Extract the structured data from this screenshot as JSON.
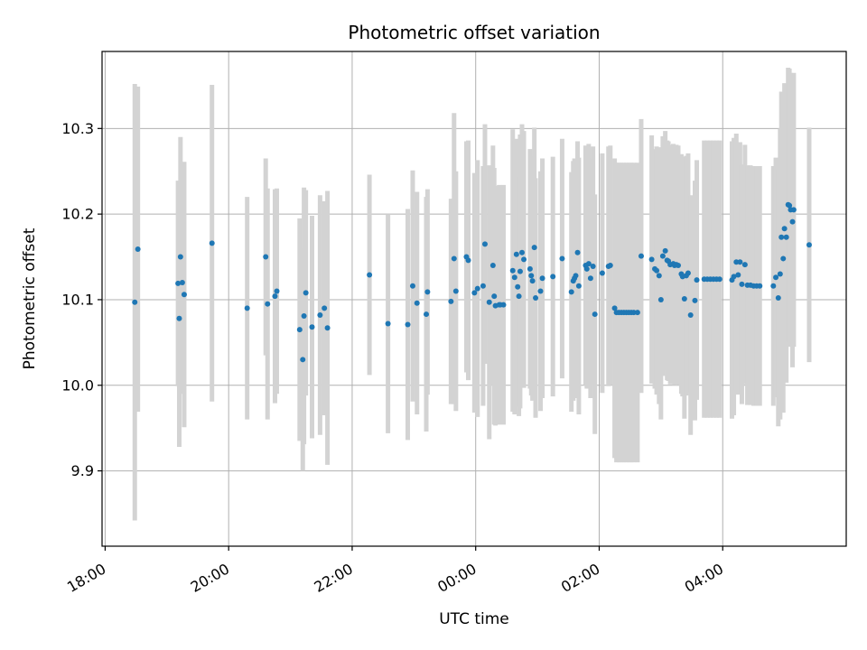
{
  "chart_data": {
    "type": "scatter",
    "title": "Photometric offset variation",
    "xlabel": "UTC time",
    "ylabel": "Photometric offset",
    "x_unit": "hours since 18:00 UTC",
    "xlim": [
      -0.05,
      12.0
    ],
    "ylim": [
      9.812,
      10.39
    ],
    "grid": true,
    "legend": "none",
    "x_ticks": [
      {
        "value": 0,
        "label": "18:00"
      },
      {
        "value": 2,
        "label": "20:00"
      },
      {
        "value": 4,
        "label": "22:00"
      },
      {
        "value": 6,
        "label": "00:00"
      },
      {
        "value": 8,
        "label": "02:00"
      },
      {
        "value": 10,
        "label": "04:00"
      }
    ],
    "y_ticks": [
      {
        "value": 9.9,
        "label": "9.9"
      },
      {
        "value": 10.0,
        "label": "10.0"
      },
      {
        "value": 10.1,
        "label": "10.1"
      },
      {
        "value": 10.2,
        "label": "10.2"
      },
      {
        "value": 10.3,
        "label": "10.3"
      }
    ],
    "colors": {
      "marker": "#1f77b4",
      "errorbar": "#d3d3d3",
      "grid": "#b0b0b0"
    },
    "points": [
      [
        0.48,
        10.097,
        0.255
      ],
      [
        0.53,
        10.159,
        0.19
      ],
      [
        1.18,
        10.119,
        0.12
      ],
      [
        1.2,
        10.078,
        0.15
      ],
      [
        1.22,
        10.15,
        0.14
      ],
      [
        1.25,
        10.12,
        0.13
      ],
      [
        1.28,
        10.106,
        0.155
      ],
      [
        1.73,
        10.166,
        0.185
      ],
      [
        2.3,
        10.09,
        0.13
      ],
      [
        2.6,
        10.15,
        0.115
      ],
      [
        2.63,
        10.095,
        0.135
      ],
      [
        2.75,
        10.104,
        0.125
      ],
      [
        2.78,
        10.11,
        0.12
      ],
      [
        3.15,
        10.065,
        0.13
      ],
      [
        3.2,
        10.03,
        0.13
      ],
      [
        3.22,
        10.081,
        0.15
      ],
      [
        3.25,
        10.108,
        0.12
      ],
      [
        3.35,
        10.068,
        0.13
      ],
      [
        3.48,
        10.082,
        0.14
      ],
      [
        3.55,
        10.09,
        0.125
      ],
      [
        3.6,
        10.067,
        0.16
      ],
      [
        4.28,
        10.129,
        0.117
      ],
      [
        4.58,
        10.072,
        0.128
      ],
      [
        4.9,
        10.071,
        0.135
      ],
      [
        4.98,
        10.116,
        0.135
      ],
      [
        5.05,
        10.096,
        0.13
      ],
      [
        5.2,
        10.083,
        0.137
      ],
      [
        5.22,
        10.109,
        0.12
      ],
      [
        5.6,
        10.098,
        0.12
      ],
      [
        5.65,
        10.148,
        0.17
      ],
      [
        5.68,
        10.11,
        0.14
      ],
      [
        5.85,
        10.15,
        0.135
      ],
      [
        5.88,
        10.146,
        0.14
      ],
      [
        5.98,
        10.108,
        0.14
      ],
      [
        6.03,
        10.113,
        0.15
      ],
      [
        6.12,
        10.116,
        0.14
      ],
      [
        6.15,
        10.165,
        0.14
      ],
      [
        6.22,
        10.097,
        0.16
      ],
      [
        6.28,
        10.14,
        0.14
      ],
      [
        6.3,
        10.104,
        0.15
      ],
      [
        6.32,
        10.093,
        0.14
      ],
      [
        6.38,
        10.094,
        0.14
      ],
      [
        6.4,
        10.094,
        0.135
      ],
      [
        6.45,
        10.094,
        0.14
      ],
      [
        6.6,
        10.134,
        0.165
      ],
      [
        6.63,
        10.126,
        0.16
      ],
      [
        6.66,
        10.153,
        0.135
      ],
      [
        6.68,
        10.115,
        0.14
      ],
      [
        6.7,
        10.104,
        0.14
      ],
      [
        6.72,
        10.133,
        0.16
      ],
      [
        6.75,
        10.155,
        0.15
      ],
      [
        6.78,
        10.147,
        0.15
      ],
      [
        6.88,
        10.136,
        0.14
      ],
      [
        6.9,
        10.128,
        0.14
      ],
      [
        6.92,
        10.122,
        0.14
      ],
      [
        6.95,
        10.161,
        0.14
      ],
      [
        6.97,
        10.102,
        0.14
      ],
      [
        7.05,
        10.11,
        0.14
      ],
      [
        7.08,
        10.125,
        0.14
      ],
      [
        7.25,
        10.127,
        0.14
      ],
      [
        7.4,
        10.148,
        0.14
      ],
      [
        7.55,
        10.109,
        0.14
      ],
      [
        7.58,
        10.122,
        0.14
      ],
      [
        7.6,
        10.125,
        0.14
      ],
      [
        7.62,
        10.128,
        0.13
      ],
      [
        7.65,
        10.155,
        0.13
      ],
      [
        7.67,
        10.116,
        0.15
      ],
      [
        7.78,
        10.14,
        0.14
      ],
      [
        7.8,
        10.136,
        0.14
      ],
      [
        7.83,
        10.142,
        0.14
      ],
      [
        7.86,
        10.125,
        0.14
      ],
      [
        7.9,
        10.139,
        0.14
      ],
      [
        7.93,
        10.083,
        0.14
      ],
      [
        8.05,
        10.131,
        0.14
      ],
      [
        8.15,
        10.139,
        0.14
      ],
      [
        8.18,
        10.14,
        0.14
      ],
      [
        8.25,
        10.09,
        0.175
      ],
      [
        8.28,
        10.085,
        0.175
      ],
      [
        8.32,
        10.085,
        0.175
      ],
      [
        8.36,
        10.085,
        0.175
      ],
      [
        8.4,
        10.085,
        0.175
      ],
      [
        8.44,
        10.085,
        0.175
      ],
      [
        8.48,
        10.085,
        0.175
      ],
      [
        8.52,
        10.085,
        0.175
      ],
      [
        8.56,
        10.085,
        0.175
      ],
      [
        8.62,
        10.085,
        0.175
      ],
      [
        8.68,
        10.151,
        0.16
      ],
      [
        8.85,
        10.147,
        0.145
      ],
      [
        8.9,
        10.136,
        0.14
      ],
      [
        8.93,
        10.134,
        0.145
      ],
      [
        8.97,
        10.128,
        0.15
      ],
      [
        9.0,
        10.1,
        0.14
      ],
      [
        9.03,
        10.151,
        0.14
      ],
      [
        9.07,
        10.157,
        0.14
      ],
      [
        9.1,
        10.146,
        0.14
      ],
      [
        9.12,
        10.145,
        0.14
      ],
      [
        9.15,
        10.141,
        0.14
      ],
      [
        9.2,
        10.142,
        0.14
      ],
      [
        9.22,
        10.14,
        0.14
      ],
      [
        9.25,
        10.141,
        0.14
      ],
      [
        9.28,
        10.14,
        0.14
      ],
      [
        9.33,
        10.13,
        0.14
      ],
      [
        9.35,
        10.127,
        0.14
      ],
      [
        9.38,
        10.101,
        0.14
      ],
      [
        9.41,
        10.128,
        0.14
      ],
      [
        9.44,
        10.131,
        0.14
      ],
      [
        9.48,
        10.082,
        0.14
      ],
      [
        9.55,
        10.099,
        0.14
      ],
      [
        9.58,
        10.123,
        0.14
      ],
      [
        9.7,
        10.124,
        0.162
      ],
      [
        9.75,
        10.124,
        0.162
      ],
      [
        9.8,
        10.124,
        0.162
      ],
      [
        9.85,
        10.124,
        0.162
      ],
      [
        9.9,
        10.124,
        0.162
      ],
      [
        9.95,
        10.124,
        0.162
      ],
      [
        10.15,
        10.123,
        0.162
      ],
      [
        10.18,
        10.127,
        0.162
      ],
      [
        10.22,
        10.144,
        0.15
      ],
      [
        10.25,
        10.129,
        0.14
      ],
      [
        10.28,
        10.144,
        0.14
      ],
      [
        10.31,
        10.118,
        0.14
      ],
      [
        10.36,
        10.141,
        0.14
      ],
      [
        10.4,
        10.117,
        0.14
      ],
      [
        10.45,
        10.117,
        0.14
      ],
      [
        10.5,
        10.116,
        0.14
      ],
      [
        10.55,
        10.116,
        0.14
      ],
      [
        10.6,
        10.116,
        0.14
      ],
      [
        10.82,
        10.116,
        0.14
      ],
      [
        10.86,
        10.126,
        0.14
      ],
      [
        10.9,
        10.102,
        0.15
      ],
      [
        10.93,
        10.13,
        0.17
      ],
      [
        10.95,
        10.173,
        0.17
      ],
      [
        10.98,
        10.148,
        0.18
      ],
      [
        11.0,
        10.183,
        0.17
      ],
      [
        11.03,
        10.173,
        0.17
      ],
      [
        11.06,
        10.211,
        0.16
      ],
      [
        11.08,
        10.21,
        0.16
      ],
      [
        11.1,
        10.205,
        0.16
      ],
      [
        11.13,
        10.191,
        0.17
      ],
      [
        11.15,
        10.205,
        0.16
      ],
      [
        11.4,
        10.164,
        0.137
      ]
    ]
  }
}
